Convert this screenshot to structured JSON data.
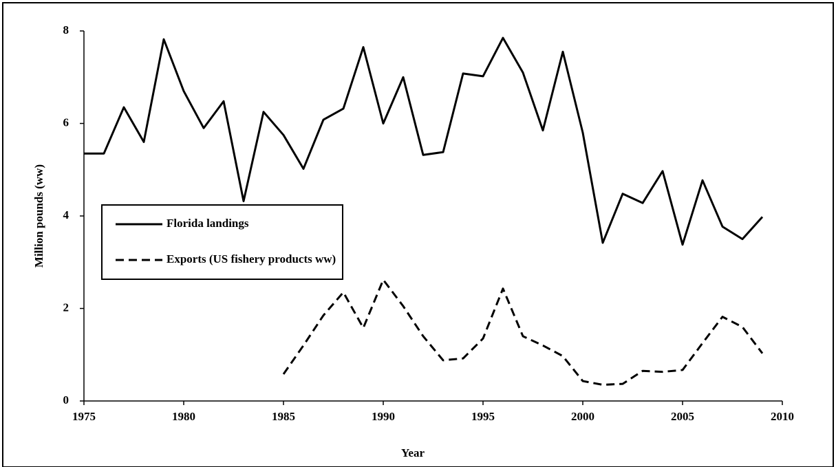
{
  "chart_data": {
    "type": "line",
    "x_label": "Year",
    "y_label": "Million pounds  (ww)",
    "x": [
      1975,
      1976,
      1977,
      1978,
      1979,
      1980,
      1981,
      1982,
      1983,
      1984,
      1985,
      1986,
      1987,
      1988,
      1989,
      1990,
      1991,
      1992,
      1993,
      1994,
      1995,
      1996,
      1997,
      1998,
      1999,
      2000,
      2001,
      2002,
      2003,
      2004,
      2005,
      2006,
      2007,
      2008,
      2009
    ],
    "series": [
      {
        "name": "Florida landings",
        "color": "#000000",
        "line_style": "solid",
        "values": [
          5.35,
          5.35,
          6.35,
          5.6,
          7.82,
          6.7,
          5.9,
          6.48,
          4.32,
          6.25,
          5.75,
          5.02,
          6.08,
          6.32,
          7.65,
          6.0,
          7.0,
          5.32,
          5.38,
          7.08,
          7.02,
          7.85,
          7.1,
          5.85,
          7.55,
          5.8,
          3.42,
          4.48,
          4.28,
          4.97,
          3.38,
          4.77,
          3.77,
          3.5,
          3.98
        ]
      },
      {
        "name": "Exports (US fishery products ww)",
        "color": "#000000",
        "line_style": "dashed",
        "values": [
          null,
          null,
          null,
          null,
          null,
          null,
          null,
          null,
          null,
          null,
          0.58,
          1.2,
          1.85,
          2.35,
          1.58,
          2.62,
          2.05,
          1.4,
          0.88,
          0.92,
          1.35,
          2.43,
          1.4,
          1.2,
          0.97,
          0.43,
          0.35,
          0.37,
          0.65,
          0.63,
          0.67,
          1.25,
          1.82,
          1.6,
          1.03
        ]
      }
    ],
    "xlim": [
      1975,
      2010
    ],
    "xticks": [
      1975,
      1980,
      1985,
      1990,
      1995,
      2000,
      2005,
      2010
    ],
    "ylim": [
      0,
      8
    ],
    "yticks": [
      0,
      2,
      4,
      6,
      8
    ],
    "grid": false,
    "legend": "center left"
  }
}
